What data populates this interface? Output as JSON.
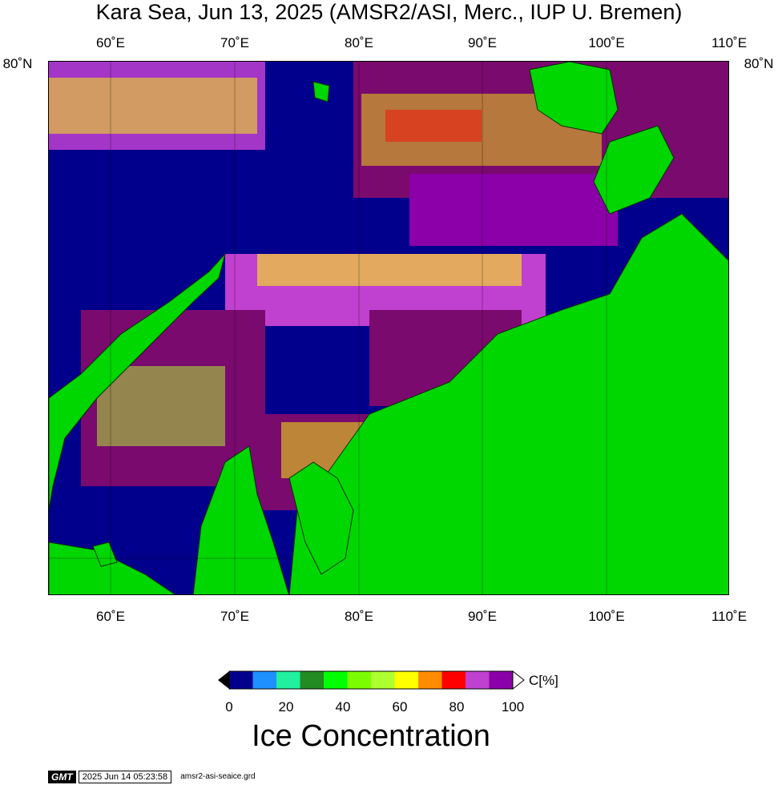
{
  "title": "Kara Sea, Jun 13, 2025 (AMSR2/ASI, Merc., IUP U. Bremen)",
  "axes": {
    "top_lon_ticks": [
      "60˚E",
      "70˚E",
      "80˚E",
      "90˚E",
      "100˚E",
      "110˚E"
    ],
    "bottom_lon_ticks": [
      "60˚E",
      "70˚E",
      "80˚E",
      "90˚E",
      "100˚E",
      "110˚E"
    ],
    "left_lat_label": "80˚N",
    "right_lat_label": "80˚N",
    "lon_range": [
      55,
      110
    ],
    "lat_range_top": 80
  },
  "colors": {
    "land": "#00d600",
    "open_water": "#00008c",
    "high_ice": "#7a0a6e",
    "border": "#000000"
  },
  "colorbar": {
    "title": "Ice Concentration",
    "unit": "C[%]",
    "tick_labels": [
      "0",
      "20",
      "40",
      "60",
      "80",
      "100"
    ],
    "bins": [
      {
        "color": "#00008c"
      },
      {
        "color": "#1e90ff"
      },
      {
        "color": "#20f0a0"
      },
      {
        "color": "#228b22"
      },
      {
        "color": "#00ff00"
      },
      {
        "color": "#7cfc00"
      },
      {
        "color": "#adff2f"
      },
      {
        "color": "#ffff00"
      },
      {
        "color": "#ff8c00"
      },
      {
        "color": "#ff0000"
      },
      {
        "color": "#c040d0"
      },
      {
        "color": "#8b00a8"
      }
    ]
  },
  "footer": {
    "logo": "GMT",
    "timestamp": "2025 Jun 14 05:23:58",
    "grid_file": "amsr2-asi-seaice.grd"
  }
}
